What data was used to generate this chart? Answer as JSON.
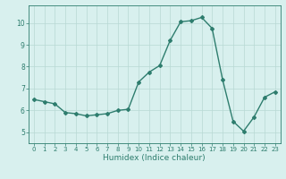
{
  "x": [
    0,
    1,
    2,
    3,
    4,
    5,
    6,
    7,
    8,
    9,
    10,
    11,
    12,
    13,
    14,
    15,
    16,
    17,
    18,
    19,
    20,
    21,
    22,
    23
  ],
  "y": [
    6.5,
    6.4,
    6.3,
    5.9,
    5.85,
    5.75,
    5.8,
    5.85,
    6.0,
    6.05,
    7.3,
    7.75,
    8.05,
    9.2,
    10.05,
    10.1,
    10.25,
    9.75,
    7.4,
    5.5,
    5.05,
    5.7,
    6.6,
    6.85
  ],
  "line_color": "#2e7d6e",
  "marker": "D",
  "markersize": 2.0,
  "linewidth": 1.0,
  "xlabel": "Humidex (Indice chaleur)",
  "xlabel_fontsize": 6.5,
  "bg_color": "#d8f0ee",
  "grid_color": "#b8d8d4",
  "tick_color": "#2e7d6e",
  "xlim": [
    -0.5,
    23.5
  ],
  "ylim": [
    4.5,
    10.8
  ],
  "yticks": [
    5,
    6,
    7,
    8,
    9,
    10
  ],
  "xticks": [
    0,
    1,
    2,
    3,
    4,
    5,
    6,
    7,
    8,
    9,
    10,
    11,
    12,
    13,
    14,
    15,
    16,
    17,
    18,
    19,
    20,
    21,
    22,
    23
  ],
  "tick_fontsize": 5.0,
  "ytick_fontsize": 5.5
}
